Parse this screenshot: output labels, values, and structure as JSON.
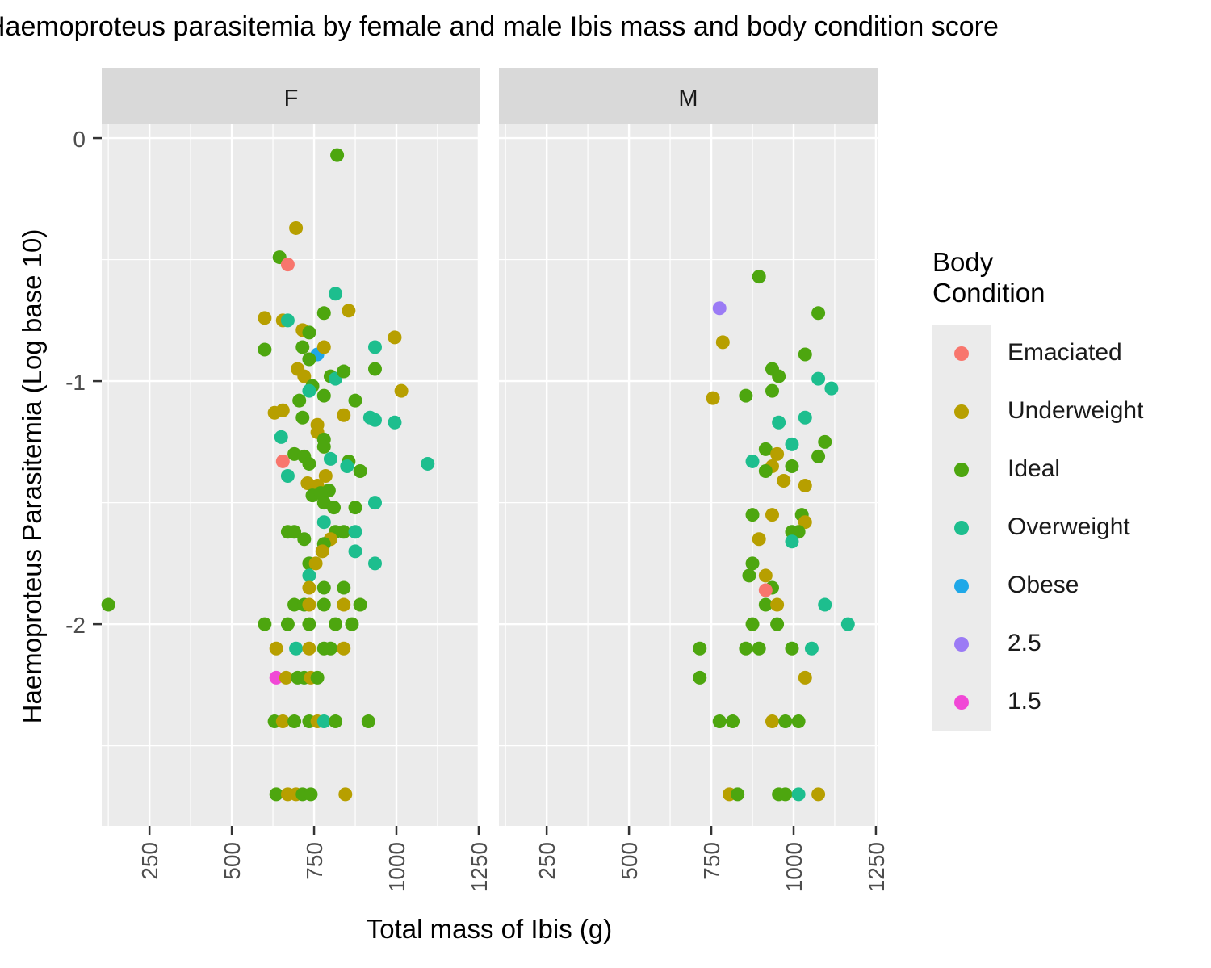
{
  "chart_data": {
    "type": "scatter",
    "title": "Haemoproteus parasitemia by female and male Ibis mass and body condition score",
    "xlabel": "Total mass of Ibis (g)",
    "ylabel": "Haemoproteus Parasitemia (Log base 10)",
    "xlim": [
      105,
      1255
    ],
    "ylim": [
      -2.83,
      0.06
    ],
    "x_ticks": [
      250,
      500,
      750,
      1000,
      1250
    ],
    "x_tick_labels": [
      "250",
      "500",
      "750",
      "1000",
      "1250"
    ],
    "y_ticks": [
      0,
      -1,
      -2
    ],
    "y_tick_labels": [
      "0",
      "-1",
      "-2"
    ],
    "grid": true,
    "legend_position": "right",
    "legend": {
      "title": "Body Condition",
      "entries": [
        {
          "label": "Emaciated",
          "color": "#F8766D"
        },
        {
          "label": "Underweight",
          "color": "#B79F00"
        },
        {
          "label": "Ideal",
          "color": "#4DA60F"
        },
        {
          "label": "Overweight",
          "color": "#1DBE8E"
        },
        {
          "label": "Obese",
          "color": "#1FA8E8"
        },
        {
          "label": "2.5",
          "color": "#9B7BF5"
        },
        {
          "label": "1.5",
          "color": "#F148D6"
        }
      ]
    },
    "facets": [
      {
        "label": "F",
        "points": [
          {
            "x": 125,
            "y": -1.92,
            "c": "Ideal"
          },
          {
            "x": 820,
            "y": -0.07,
            "c": "Ideal"
          },
          {
            "x": 695,
            "y": -0.37,
            "c": "Underweight"
          },
          {
            "x": 645,
            "y": -0.49,
            "c": "Ideal"
          },
          {
            "x": 670,
            "y": -0.52,
            "c": "Emaciated"
          },
          {
            "x": 815,
            "y": -0.64,
            "c": "Overweight"
          },
          {
            "x": 600,
            "y": -0.74,
            "c": "Underweight"
          },
          {
            "x": 655,
            "y": -0.75,
            "c": "Underweight"
          },
          {
            "x": 670,
            "y": -0.75,
            "c": "Overweight"
          },
          {
            "x": 780,
            "y": -0.72,
            "c": "Ideal"
          },
          {
            "x": 855,
            "y": -0.71,
            "c": "Underweight"
          },
          {
            "x": 715,
            "y": -0.79,
            "c": "Underweight"
          },
          {
            "x": 735,
            "y": -0.8,
            "c": "Ideal"
          },
          {
            "x": 995,
            "y": -0.82,
            "c": "Underweight"
          },
          {
            "x": 600,
            "y": -0.87,
            "c": "Ideal"
          },
          {
            "x": 715,
            "y": -0.86,
            "c": "Ideal"
          },
          {
            "x": 760,
            "y": -0.89,
            "c": "Obese"
          },
          {
            "x": 780,
            "y": -0.86,
            "c": "Underweight"
          },
          {
            "x": 935,
            "y": -0.86,
            "c": "Overweight"
          },
          {
            "x": 735,
            "y": -0.91,
            "c": "Ideal"
          },
          {
            "x": 700,
            "y": -0.95,
            "c": "Underweight"
          },
          {
            "x": 720,
            "y": -0.98,
            "c": "Underweight"
          },
          {
            "x": 800,
            "y": -0.98,
            "c": "Ideal"
          },
          {
            "x": 815,
            "y": -0.99,
            "c": "Overweight"
          },
          {
            "x": 840,
            "y": -0.96,
            "c": "Ideal"
          },
          {
            "x": 935,
            "y": -0.95,
            "c": "Ideal"
          },
          {
            "x": 745,
            "y": -1.02,
            "c": "Ideal"
          },
          {
            "x": 735,
            "y": -1.04,
            "c": "Overweight"
          },
          {
            "x": 1015,
            "y": -1.04,
            "c": "Underweight"
          },
          {
            "x": 705,
            "y": -1.08,
            "c": "Ideal"
          },
          {
            "x": 780,
            "y": -1.06,
            "c": "Ideal"
          },
          {
            "x": 875,
            "y": -1.08,
            "c": "Ideal"
          },
          {
            "x": 630,
            "y": -1.13,
            "c": "Underweight"
          },
          {
            "x": 655,
            "y": -1.12,
            "c": "Underweight"
          },
          {
            "x": 715,
            "y": -1.15,
            "c": "Ideal"
          },
          {
            "x": 840,
            "y": -1.14,
            "c": "Underweight"
          },
          {
            "x": 920,
            "y": -1.15,
            "c": "Overweight"
          },
          {
            "x": 935,
            "y": -1.16,
            "c": "Overweight"
          },
          {
            "x": 995,
            "y": -1.17,
            "c": "Overweight"
          },
          {
            "x": 760,
            "y": -1.18,
            "c": "Underweight"
          },
          {
            "x": 760,
            "y": -1.21,
            "c": "Underweight"
          },
          {
            "x": 650,
            "y": -1.23,
            "c": "Overweight"
          },
          {
            "x": 780,
            "y": -1.24,
            "c": "Ideal"
          },
          {
            "x": 780,
            "y": -1.27,
            "c": "Ideal"
          },
          {
            "x": 690,
            "y": -1.3,
            "c": "Ideal"
          },
          {
            "x": 720,
            "y": -1.31,
            "c": "Ideal"
          },
          {
            "x": 655,
            "y": -1.33,
            "c": "Emaciated"
          },
          {
            "x": 735,
            "y": -1.34,
            "c": "Ideal"
          },
          {
            "x": 800,
            "y": -1.32,
            "c": "Overweight"
          },
          {
            "x": 855,
            "y": -1.33,
            "c": "Ideal"
          },
          {
            "x": 850,
            "y": -1.35,
            "c": "Overweight"
          },
          {
            "x": 1095,
            "y": -1.34,
            "c": "Overweight"
          },
          {
            "x": 890,
            "y": -1.37,
            "c": "Ideal"
          },
          {
            "x": 670,
            "y": -1.39,
            "c": "Overweight"
          },
          {
            "x": 785,
            "y": -1.39,
            "c": "Underweight"
          },
          {
            "x": 730,
            "y": -1.42,
            "c": "Underweight"
          },
          {
            "x": 760,
            "y": -1.43,
            "c": "Underweight"
          },
          {
            "x": 795,
            "y": -1.45,
            "c": "Ideal"
          },
          {
            "x": 745,
            "y": -1.47,
            "c": "Ideal"
          },
          {
            "x": 770,
            "y": -1.46,
            "c": "Ideal"
          },
          {
            "x": 780,
            "y": -1.5,
            "c": "Ideal"
          },
          {
            "x": 935,
            "y": -1.5,
            "c": "Overweight"
          },
          {
            "x": 810,
            "y": -1.52,
            "c": "Ideal"
          },
          {
            "x": 875,
            "y": -1.52,
            "c": "Ideal"
          },
          {
            "x": 780,
            "y": -1.58,
            "c": "Overweight"
          },
          {
            "x": 670,
            "y": -1.62,
            "c": "Ideal"
          },
          {
            "x": 690,
            "y": -1.62,
            "c": "Ideal"
          },
          {
            "x": 815,
            "y": -1.62,
            "c": "Ideal"
          },
          {
            "x": 840,
            "y": -1.62,
            "c": "Ideal"
          },
          {
            "x": 875,
            "y": -1.62,
            "c": "Overweight"
          },
          {
            "x": 720,
            "y": -1.65,
            "c": "Ideal"
          },
          {
            "x": 800,
            "y": -1.65,
            "c": "Underweight"
          },
          {
            "x": 780,
            "y": -1.67,
            "c": "Ideal"
          },
          {
            "x": 775,
            "y": -1.7,
            "c": "Underweight"
          },
          {
            "x": 875,
            "y": -1.7,
            "c": "Overweight"
          },
          {
            "x": 735,
            "y": -1.75,
            "c": "Ideal"
          },
          {
            "x": 755,
            "y": -1.75,
            "c": "Underweight"
          },
          {
            "x": 935,
            "y": -1.75,
            "c": "Overweight"
          },
          {
            "x": 735,
            "y": -1.8,
            "c": "Overweight"
          },
          {
            "x": 735,
            "y": -1.85,
            "c": "Underweight"
          },
          {
            "x": 780,
            "y": -1.85,
            "c": "Ideal"
          },
          {
            "x": 840,
            "y": -1.85,
            "c": "Ideal"
          },
          {
            "x": 690,
            "y": -1.92,
            "c": "Ideal"
          },
          {
            "x": 720,
            "y": -1.92,
            "c": "Ideal"
          },
          {
            "x": 735,
            "y": -1.92,
            "c": "Underweight"
          },
          {
            "x": 780,
            "y": -1.92,
            "c": "Ideal"
          },
          {
            "x": 840,
            "y": -1.92,
            "c": "Underweight"
          },
          {
            "x": 890,
            "y": -1.92,
            "c": "Ideal"
          },
          {
            "x": 600,
            "y": -2.0,
            "c": "Ideal"
          },
          {
            "x": 670,
            "y": -2.0,
            "c": "Ideal"
          },
          {
            "x": 735,
            "y": -2.0,
            "c": "Ideal"
          },
          {
            "x": 815,
            "y": -2.0,
            "c": "Ideal"
          },
          {
            "x": 865,
            "y": -2.0,
            "c": "Ideal"
          },
          {
            "x": 635,
            "y": -2.1,
            "c": "Underweight"
          },
          {
            "x": 695,
            "y": -2.1,
            "c": "Overweight"
          },
          {
            "x": 735,
            "y": -2.1,
            "c": "Underweight"
          },
          {
            "x": 780,
            "y": -2.1,
            "c": "Ideal"
          },
          {
            "x": 800,
            "y": -2.1,
            "c": "Ideal"
          },
          {
            "x": 840,
            "y": -2.1,
            "c": "Underweight"
          },
          {
            "x": 635,
            "y": -2.22,
            "c": "1.5"
          },
          {
            "x": 665,
            "y": -2.22,
            "c": "Underweight"
          },
          {
            "x": 700,
            "y": -2.22,
            "c": "Ideal"
          },
          {
            "x": 720,
            "y": -2.22,
            "c": "Ideal"
          },
          {
            "x": 740,
            "y": -2.22,
            "c": "Underweight"
          },
          {
            "x": 760,
            "y": -2.22,
            "c": "Ideal"
          },
          {
            "x": 630,
            "y": -2.4,
            "c": "Ideal"
          },
          {
            "x": 655,
            "y": -2.4,
            "c": "Underweight"
          },
          {
            "x": 690,
            "y": -2.4,
            "c": "Ideal"
          },
          {
            "x": 735,
            "y": -2.4,
            "c": "Ideal"
          },
          {
            "x": 760,
            "y": -2.4,
            "c": "Underweight"
          },
          {
            "x": 780,
            "y": -2.4,
            "c": "Overweight"
          },
          {
            "x": 815,
            "y": -2.4,
            "c": "Ideal"
          },
          {
            "x": 915,
            "y": -2.4,
            "c": "Ideal"
          },
          {
            "x": 635,
            "y": -2.7,
            "c": "Ideal"
          },
          {
            "x": 670,
            "y": -2.7,
            "c": "Underweight"
          },
          {
            "x": 695,
            "y": -2.7,
            "c": "Underweight"
          },
          {
            "x": 715,
            "y": -2.7,
            "c": "Ideal"
          },
          {
            "x": 740,
            "y": -2.7,
            "c": "Ideal"
          },
          {
            "x": 845,
            "y": -2.7,
            "c": "Underweight"
          }
        ]
      },
      {
        "label": "M",
        "points": [
          {
            "x": 895,
            "y": -0.57,
            "c": "Ideal"
          },
          {
            "x": 775,
            "y": -0.7,
            "c": "2.5"
          },
          {
            "x": 1075,
            "y": -0.72,
            "c": "Ideal"
          },
          {
            "x": 785,
            "y": -0.84,
            "c": "Underweight"
          },
          {
            "x": 1035,
            "y": -0.89,
            "c": "Ideal"
          },
          {
            "x": 935,
            "y": -0.95,
            "c": "Ideal"
          },
          {
            "x": 955,
            "y": -0.98,
            "c": "Ideal"
          },
          {
            "x": 1075,
            "y": -0.99,
            "c": "Overweight"
          },
          {
            "x": 1115,
            "y": -1.03,
            "c": "Overweight"
          },
          {
            "x": 935,
            "y": -1.04,
            "c": "Ideal"
          },
          {
            "x": 855,
            "y": -1.06,
            "c": "Ideal"
          },
          {
            "x": 755,
            "y": -1.07,
            "c": "Underweight"
          },
          {
            "x": 1035,
            "y": -1.15,
            "c": "Overweight"
          },
          {
            "x": 955,
            "y": -1.17,
            "c": "Overweight"
          },
          {
            "x": 1095,
            "y": -1.25,
            "c": "Ideal"
          },
          {
            "x": 995,
            "y": -1.26,
            "c": "Overweight"
          },
          {
            "x": 915,
            "y": -1.28,
            "c": "Ideal"
          },
          {
            "x": 950,
            "y": -1.3,
            "c": "Underweight"
          },
          {
            "x": 1075,
            "y": -1.31,
            "c": "Ideal"
          },
          {
            "x": 875,
            "y": -1.33,
            "c": "Overweight"
          },
          {
            "x": 935,
            "y": -1.35,
            "c": "Underweight"
          },
          {
            "x": 995,
            "y": -1.35,
            "c": "Ideal"
          },
          {
            "x": 915,
            "y": -1.37,
            "c": "Ideal"
          },
          {
            "x": 970,
            "y": -1.41,
            "c": "Underweight"
          },
          {
            "x": 1035,
            "y": -1.43,
            "c": "Underweight"
          },
          {
            "x": 875,
            "y": -1.55,
            "c": "Ideal"
          },
          {
            "x": 935,
            "y": -1.55,
            "c": "Underweight"
          },
          {
            "x": 1025,
            "y": -1.55,
            "c": "Ideal"
          },
          {
            "x": 1035,
            "y": -1.58,
            "c": "Underweight"
          },
          {
            "x": 1015,
            "y": -1.62,
            "c": "Ideal"
          },
          {
            "x": 995,
            "y": -1.62,
            "c": "Ideal"
          },
          {
            "x": 995,
            "y": -1.66,
            "c": "Overweight"
          },
          {
            "x": 895,
            "y": -1.65,
            "c": "Underweight"
          },
          {
            "x": 875,
            "y": -1.75,
            "c": "Ideal"
          },
          {
            "x": 865,
            "y": -1.8,
            "c": "Ideal"
          },
          {
            "x": 915,
            "y": -1.8,
            "c": "Underweight"
          },
          {
            "x": 935,
            "y": -1.85,
            "c": "Ideal"
          },
          {
            "x": 915,
            "y": -1.86,
            "c": "Emaciated"
          },
          {
            "x": 915,
            "y": -1.92,
            "c": "Ideal"
          },
          {
            "x": 950,
            "y": -1.92,
            "c": "Underweight"
          },
          {
            "x": 1095,
            "y": -1.92,
            "c": "Overweight"
          },
          {
            "x": 875,
            "y": -2.0,
            "c": "Ideal"
          },
          {
            "x": 950,
            "y": -2.0,
            "c": "Ideal"
          },
          {
            "x": 1165,
            "y": -2.0,
            "c": "Overweight"
          },
          {
            "x": 715,
            "y": -2.1,
            "c": "Ideal"
          },
          {
            "x": 855,
            "y": -2.1,
            "c": "Ideal"
          },
          {
            "x": 895,
            "y": -2.1,
            "c": "Ideal"
          },
          {
            "x": 995,
            "y": -2.1,
            "c": "Ideal"
          },
          {
            "x": 1055,
            "y": -2.1,
            "c": "Overweight"
          },
          {
            "x": 715,
            "y": -2.22,
            "c": "Ideal"
          },
          {
            "x": 1035,
            "y": -2.22,
            "c": "Underweight"
          },
          {
            "x": 775,
            "y": -2.4,
            "c": "Ideal"
          },
          {
            "x": 815,
            "y": -2.4,
            "c": "Ideal"
          },
          {
            "x": 935,
            "y": -2.4,
            "c": "Underweight"
          },
          {
            "x": 975,
            "y": -2.4,
            "c": "Ideal"
          },
          {
            "x": 1015,
            "y": -2.4,
            "c": "Ideal"
          },
          {
            "x": 805,
            "y": -2.7,
            "c": "Underweight"
          },
          {
            "x": 830,
            "y": -2.7,
            "c": "Ideal"
          },
          {
            "x": 955,
            "y": -2.7,
            "c": "Ideal"
          },
          {
            "x": 975,
            "y": -2.7,
            "c": "Ideal"
          },
          {
            "x": 1015,
            "y": -2.7,
            "c": "Overweight"
          },
          {
            "x": 1075,
            "y": -2.7,
            "c": "Underweight"
          }
        ]
      }
    ]
  },
  "colors": {
    "panel_background": "#ebebeb",
    "strip_background": "#d9d9d9",
    "grid_major": "#ffffff",
    "tick_mark": "#333333",
    "tick_label": "#4d4d4d"
  }
}
